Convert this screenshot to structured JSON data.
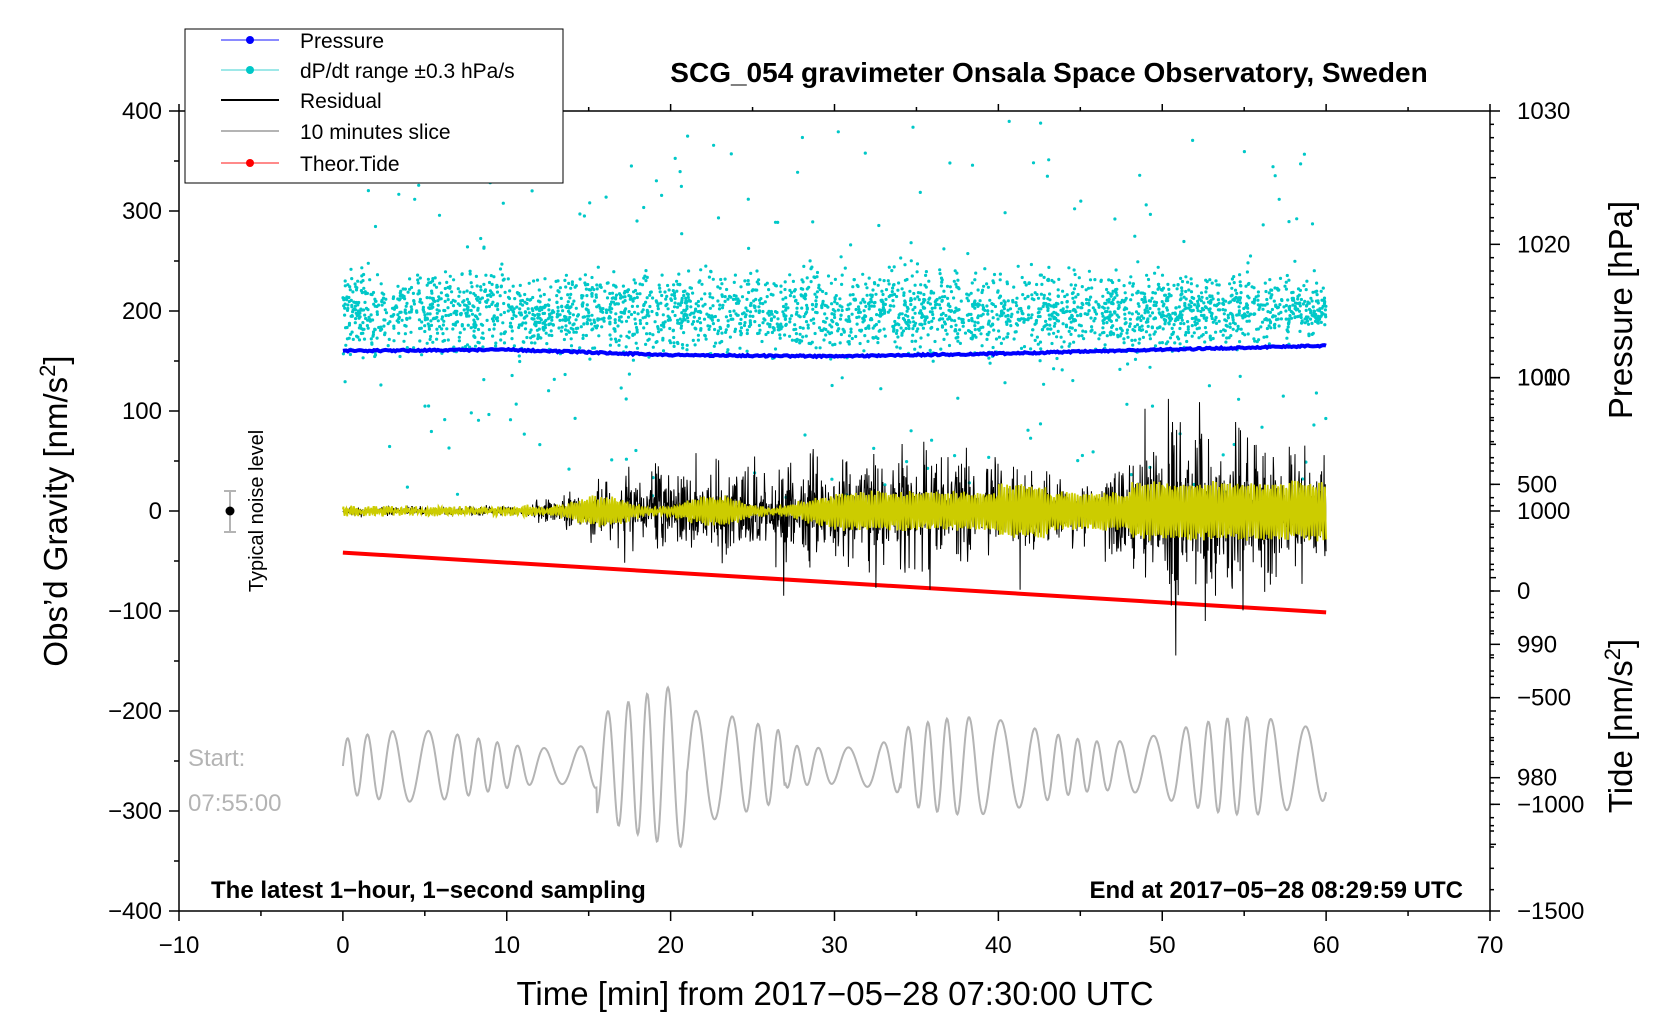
{
  "chart_data": {
    "type": "line",
    "title": "SCG_054 gravimeter Onsala Space Observatory, Sweden",
    "xlabel": "Time [min] from 2017−05−28 07:30:00 UTC",
    "ylabel": "Obs’d Gravity [nm/s",
    "ylabel_sup": "2",
    "ylabel_end": "]",
    "y2label": "Pressure [hPa]",
    "y3label": "Tide [nm/s",
    "y3label_sup": "2",
    "y3label_end": "]",
    "xlim": [
      -10,
      70
    ],
    "ylim": [
      -400,
      400
    ],
    "pressure_lim": [
      970,
      1030
    ],
    "tide_lim": [
      -1500,
      2250
    ],
    "x_ticks": [
      "−10",
      "0",
      "10",
      "20",
      "30",
      "40",
      "50",
      "60",
      "70"
    ],
    "y_ticks": [
      "400",
      "300",
      "200",
      "100",
      "0",
      "−100",
      "−200",
      "−300",
      "−400"
    ],
    "pressure_ticks": [
      "1030",
      "1020",
      "1010",
      "1000",
      "990",
      "980"
    ],
    "tide_ticks": [
      "1000",
      "500",
      "0",
      "−500",
      "−1000",
      "−1500"
    ],
    "legend": [
      {
        "label": "Pressure",
        "color": "#0000ff"
      },
      {
        "label": "dP/dt range ±0.3 hPa/s",
        "color": "#00c8c8"
      },
      {
        "label": "Residual",
        "color": "#000000"
      },
      {
        "label": "10 minutes slice",
        "color": "#b4b4b4"
      },
      {
        "label": "Theor.Tide",
        "color": "#ff0000"
      }
    ],
    "series": [
      {
        "name": "Pressure",
        "units": "hPa",
        "x": [
          0,
          10,
          20,
          30,
          40,
          50,
          60
        ],
        "values": [
          1012.0,
          1012.1,
          1011.7,
          1011.6,
          1011.8,
          1012.1,
          1012.4
        ]
      },
      {
        "name": "Theor.Tide",
        "units": "nm/s2",
        "x": [
          0,
          60
        ],
        "values": [
          180,
          -100
        ]
      },
      {
        "name": "Residual",
        "units": "nm/s2",
        "envelope": [
          {
            "x": 0,
            "amp": 6
          },
          {
            "x": 11,
            "amp": 8
          },
          {
            "x": 19,
            "amp": 60
          },
          {
            "x": 30,
            "amp": 75
          },
          {
            "x": 36,
            "amp": 90
          },
          {
            "x": 46,
            "amp": 40
          },
          {
            "x": 50.5,
            "amp": 150
          },
          {
            "x": 60,
            "amp": 80
          }
        ]
      },
      {
        "name": "10 minutes slice",
        "units": "nm/s2",
        "x_range": [
          0,
          60
        ],
        "baseline": -255,
        "amplitude": 65
      }
    ],
    "start_label": "Start:",
    "start_time": "07:55:00",
    "noise_label": "Typical noise level",
    "note_left": "The latest 1−hour, 1−second sampling",
    "note_right": "End at 2017−05−28 08:29:59 UTC",
    "colors": {
      "pressure": "#0000ff",
      "dpdt": "#00c8c8",
      "residual": "#000000",
      "filtered": "#cccc00",
      "slice": "#b4b4b4",
      "tide": "#ff0000"
    }
  }
}
